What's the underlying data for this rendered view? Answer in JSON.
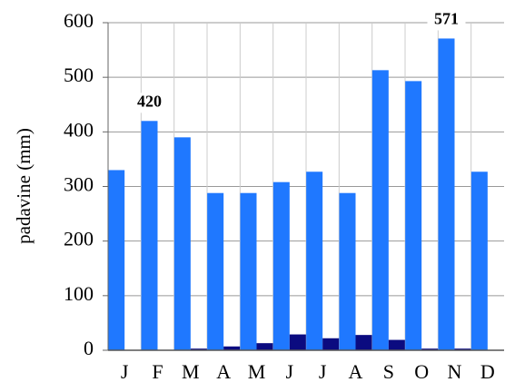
{
  "chart_data": {
    "type": "bar",
    "y_label": "padavine (mm)",
    "categories": [
      "J",
      "F",
      "M",
      "A",
      "M",
      "J",
      "J",
      "A",
      "S",
      "O",
      "N",
      "D"
    ],
    "series": [
      {
        "color": "#1f78ff",
        "values": [
          330,
          420,
          390,
          288,
          288,
          308,
          327,
          288,
          513,
          493,
          571,
          327
        ],
        "value_labels": [
          null,
          "420",
          null,
          null,
          null,
          null,
          null,
          null,
          null,
          null,
          "571",
          null
        ]
      },
      {
        "color": "#0b0b80",
        "values": [
          0,
          0,
          3,
          7,
          13,
          29,
          22,
          28,
          19,
          3,
          3,
          0
        ]
      }
    ],
    "ylim": [
      0,
      600
    ],
    "yticks": [
      0,
      100,
      200,
      300,
      400,
      500,
      600
    ],
    "grid": true
  }
}
